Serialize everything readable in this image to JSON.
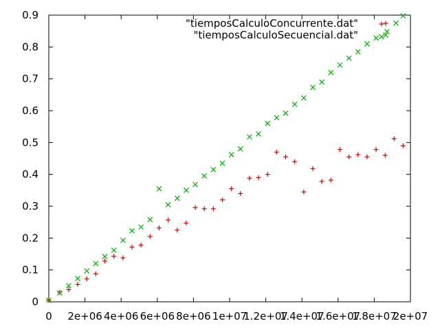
{
  "chart_data": {
    "type": "scatter",
    "title": "",
    "xlabel": "",
    "ylabel": "",
    "xlim": [
      0,
      20000000
    ],
    "ylim": [
      0,
      0.9
    ],
    "grid": false,
    "legend_position": "top-right",
    "x_ticks": [
      {
        "value": 0,
        "label": "0"
      },
      {
        "value": 2000000,
        "label": "2e+06"
      },
      {
        "value": 4000000,
        "label": "4e+06"
      },
      {
        "value": 6000000,
        "label": "6e+06"
      },
      {
        "value": 8000000,
        "label": "8e+06"
      },
      {
        "value": 10000000,
        "label": "1e+07"
      },
      {
        "value": 12000000,
        "label": "1.2e+07"
      },
      {
        "value": 14000000,
        "label": "1.4e+07"
      },
      {
        "value": 16000000,
        "label": "1.6e+07"
      },
      {
        "value": 18000000,
        "label": "1.8e+07"
      },
      {
        "value": 20000000,
        "label": "2e+07"
      }
    ],
    "y_ticks": [
      {
        "value": 0,
        "label": "0"
      },
      {
        "value": 0.1,
        "label": "0.1"
      },
      {
        "value": 0.2,
        "label": "0.2"
      },
      {
        "value": 0.3,
        "label": "0.3"
      },
      {
        "value": 0.4,
        "label": "0.4"
      },
      {
        "value": 0.5,
        "label": "0.5"
      },
      {
        "value": 0.6,
        "label": "0.6"
      },
      {
        "value": 0.7,
        "label": "0.7"
      },
      {
        "value": 0.8,
        "label": "0.8"
      },
      {
        "value": 0.9,
        "label": "0.9"
      }
    ],
    "series": [
      {
        "name": "\"tiemposCalculoConcurrente.dat\"",
        "marker": "plus",
        "color": "#cc0000",
        "points": [
          [
            0,
            0.005
          ],
          [
            600000,
            0.03
          ],
          [
            1100000,
            0.038
          ],
          [
            1600000,
            0.055
          ],
          [
            2100000,
            0.072
          ],
          [
            2600000,
            0.088
          ],
          [
            3100000,
            0.128
          ],
          [
            3600000,
            0.143
          ],
          [
            4100000,
            0.138
          ],
          [
            4600000,
            0.172
          ],
          [
            5100000,
            0.178
          ],
          [
            5600000,
            0.205
          ],
          [
            6100000,
            0.232
          ],
          [
            6600000,
            0.257
          ],
          [
            7100000,
            0.225
          ],
          [
            7600000,
            0.247
          ],
          [
            8100000,
            0.296
          ],
          [
            8600000,
            0.292
          ],
          [
            9100000,
            0.292
          ],
          [
            9600000,
            0.32
          ],
          [
            10100000,
            0.355
          ],
          [
            10600000,
            0.34
          ],
          [
            11100000,
            0.388
          ],
          [
            11600000,
            0.39
          ],
          [
            12100000,
            0.4
          ],
          [
            12600000,
            0.47
          ],
          [
            13100000,
            0.455
          ],
          [
            13600000,
            0.44
          ],
          [
            14100000,
            0.345
          ],
          [
            14600000,
            0.418
          ],
          [
            15100000,
            0.378
          ],
          [
            15600000,
            0.382
          ],
          [
            16100000,
            0.478
          ],
          [
            16600000,
            0.455
          ],
          [
            17100000,
            0.462
          ],
          [
            17600000,
            0.455
          ],
          [
            18100000,
            0.478
          ],
          [
            18400000,
            0.872
          ],
          [
            18600000,
            0.46
          ],
          [
            19100000,
            0.512
          ],
          [
            19600000,
            0.49
          ]
        ]
      },
      {
        "name": "\"tiemposCalculoSecuencial.dat\"",
        "marker": "cross",
        "color": "#00aa00",
        "points": [
          [
            0,
            0.005
          ],
          [
            600000,
            0.028
          ],
          [
            1100000,
            0.05
          ],
          [
            1600000,
            0.073
          ],
          [
            2100000,
            0.097
          ],
          [
            2600000,
            0.12
          ],
          [
            3100000,
            0.142
          ],
          [
            3600000,
            0.162
          ],
          [
            4100000,
            0.193
          ],
          [
            4600000,
            0.223
          ],
          [
            5100000,
            0.235
          ],
          [
            5600000,
            0.258
          ],
          [
            6100000,
            0.355
          ],
          [
            6600000,
            0.305
          ],
          [
            7100000,
            0.325
          ],
          [
            7600000,
            0.35
          ],
          [
            8100000,
            0.368
          ],
          [
            8600000,
            0.395
          ],
          [
            9100000,
            0.415
          ],
          [
            9600000,
            0.435
          ],
          [
            10100000,
            0.462
          ],
          [
            10600000,
            0.48
          ],
          [
            11100000,
            0.518
          ],
          [
            11600000,
            0.527
          ],
          [
            12100000,
            0.56
          ],
          [
            12600000,
            0.578
          ],
          [
            13100000,
            0.592
          ],
          [
            13600000,
            0.62
          ],
          [
            14100000,
            0.64
          ],
          [
            14600000,
            0.673
          ],
          [
            15100000,
            0.69
          ],
          [
            15600000,
            0.72
          ],
          [
            16100000,
            0.743
          ],
          [
            16600000,
            0.765
          ],
          [
            17100000,
            0.785
          ],
          [
            17600000,
            0.81
          ],
          [
            18100000,
            0.828
          ],
          [
            18400000,
            0.832
          ],
          [
            18700000,
            0.848
          ],
          [
            19200000,
            0.875
          ],
          [
            19600000,
            0.898
          ]
        ]
      }
    ]
  }
}
